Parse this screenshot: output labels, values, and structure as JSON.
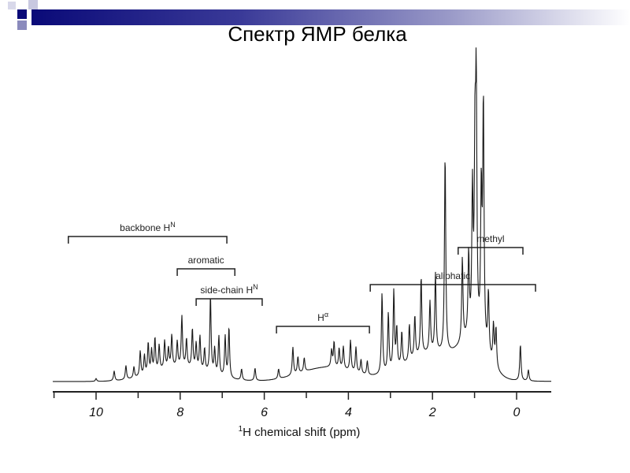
{
  "slide": {
    "title": "Спектр ЯМР белка",
    "colors": {
      "accent": "#0a0a78",
      "accent_light": "#9a9ac8"
    }
  },
  "chart_data": {
    "type": "line",
    "title": "",
    "xlabel": "¹H chemical shift (ppm)",
    "xlabel_sup": "1",
    "xlabel_main": "H chemical shift (ppm)",
    "ylabel": "",
    "xlim": [
      11.0,
      -0.8
    ],
    "x_reversed": true,
    "xticks": [
      10,
      8,
      6,
      4,
      2,
      0
    ],
    "xtick_labels": [
      "10",
      "8",
      "6",
      "4",
      "2",
      "0"
    ],
    "minor_ticks": [
      11,
      9,
      7,
      5,
      3,
      1
    ],
    "y_units": "relative intensity (tallest peak = 100)",
    "grid": false,
    "peaks": [
      [
        10.0,
        1
      ],
      [
        9.57,
        3.5
      ],
      [
        9.29,
        5
      ],
      [
        9.1,
        4
      ],
      [
        8.95,
        9
      ],
      [
        8.85,
        7
      ],
      [
        8.76,
        11
      ],
      [
        8.68,
        8
      ],
      [
        8.6,
        12
      ],
      [
        8.5,
        9
      ],
      [
        8.37,
        10
      ],
      [
        8.28,
        7
      ],
      [
        8.2,
        11.5
      ],
      [
        8.07,
        9
      ],
      [
        7.96,
        18
      ],
      [
        7.85,
        10
      ],
      [
        7.71,
        14
      ],
      [
        7.62,
        9
      ],
      [
        7.53,
        12
      ],
      [
        7.42,
        8
      ],
      [
        7.28,
        27.5
      ],
      [
        7.18,
        9
      ],
      [
        7.08,
        14
      ],
      [
        6.93,
        14.6
      ],
      [
        6.84,
        18
      ],
      [
        6.54,
        4
      ],
      [
        6.22,
        4.5
      ],
      [
        5.66,
        3.5
      ],
      [
        5.32,
        10
      ],
      [
        5.2,
        6
      ],
      [
        5.05,
        5
      ],
      [
        4.4,
        6
      ],
      [
        4.34,
        9
      ],
      [
        4.22,
        7
      ],
      [
        4.12,
        8
      ],
      [
        3.95,
        11
      ],
      [
        3.82,
        9
      ],
      [
        3.7,
        5
      ],
      [
        3.55,
        5
      ],
      [
        3.2,
        29
      ],
      [
        3.05,
        21
      ],
      [
        2.92,
        28
      ],
      [
        2.85,
        14
      ],
      [
        2.73,
        12
      ],
      [
        2.55,
        13
      ],
      [
        2.42,
        15
      ],
      [
        2.27,
        28
      ],
      [
        2.06,
        18
      ],
      [
        1.93,
        28
      ],
      [
        1.7,
        71
      ],
      [
        1.29,
        30
      ],
      [
        1.14,
        29
      ],
      [
        1.05,
        50
      ],
      [
        0.99,
        62
      ],
      [
        0.96,
        84
      ],
      [
        0.84,
        52
      ],
      [
        0.79,
        86
      ],
      [
        0.67,
        22
      ],
      [
        0.55,
        14
      ],
      [
        0.49,
        14
      ],
      [
        -0.09,
        13
      ],
      [
        -0.28,
        4
      ]
    ],
    "broad_components": [
      [
        8.0,
        5,
        0.9
      ],
      [
        4.5,
        5,
        0.9
      ],
      [
        2.0,
        10,
        0.9
      ],
      [
        1.0,
        12,
        0.45
      ]
    ],
    "annotations": [
      {
        "label": "backbone H",
        "sup": "N",
        "from_ppm": 10.66,
        "to_ppm": 6.89
      },
      {
        "label": "aromatic",
        "sup": "",
        "from_ppm": 8.07,
        "to_ppm": 6.7
      },
      {
        "label": "side-chain H",
        "sup": "N",
        "from_ppm": 7.62,
        "to_ppm": 6.05
      },
      {
        "label": "H",
        "sup": "α",
        "from_ppm": 5.71,
        "to_ppm": 3.5
      },
      {
        "label": "aliphatic",
        "sup": "",
        "from_ppm": 3.48,
        "to_ppm": -0.45
      },
      {
        "label": "methyl",
        "sup": "",
        "from_ppm": 1.39,
        "to_ppm": -0.15
      }
    ]
  }
}
